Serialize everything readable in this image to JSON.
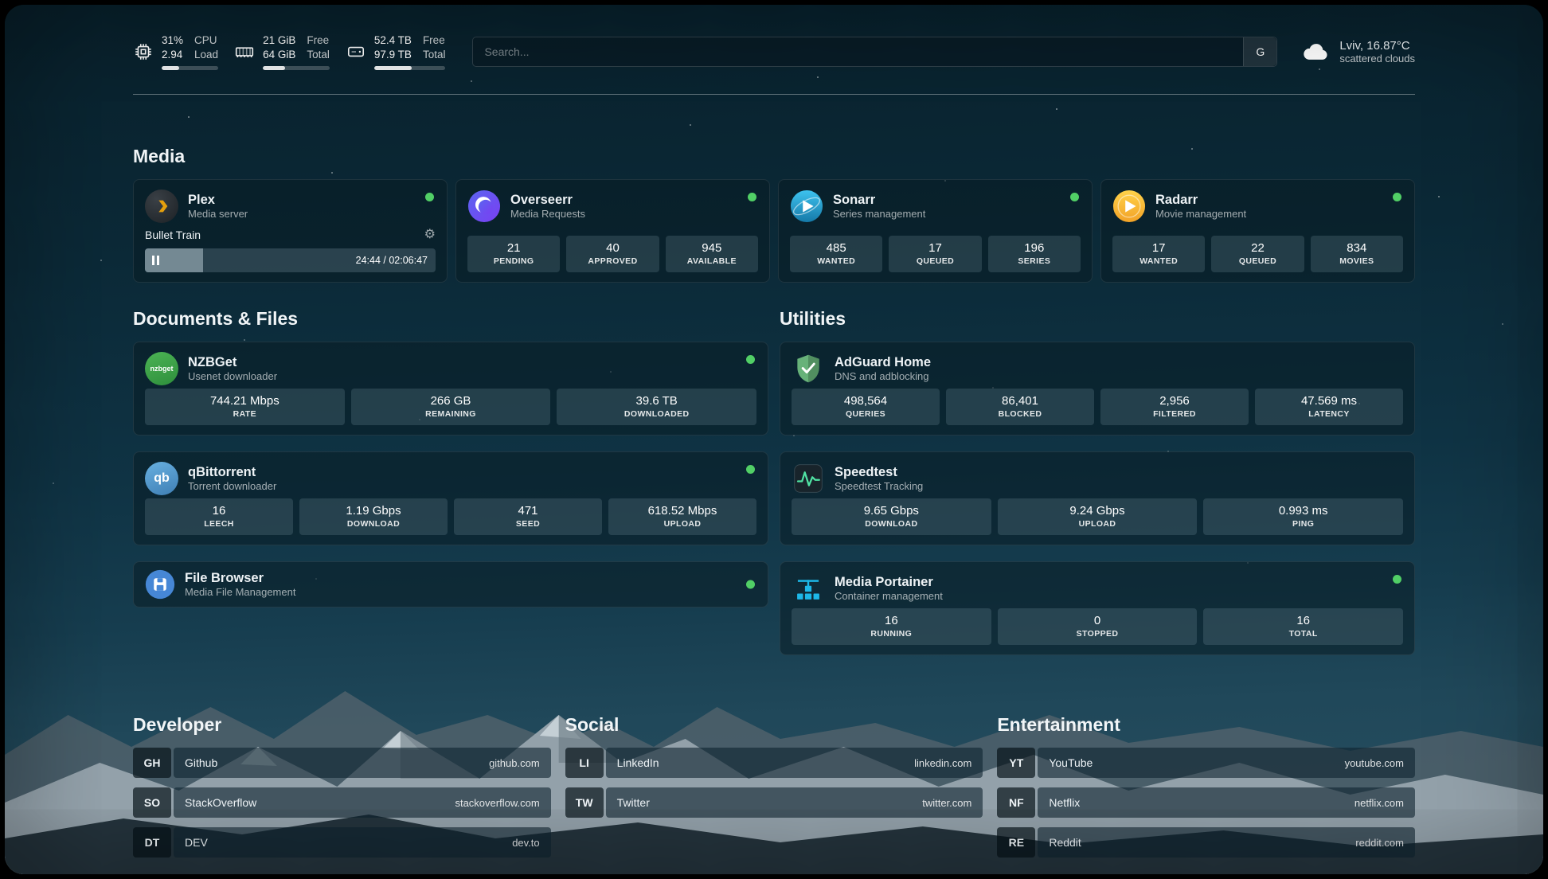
{
  "colors": {
    "status_online": "#51cf66",
    "plex_amber": "#e5a00d",
    "radarr_yellow": "#ffc230",
    "sonarr_blue": "#35b5e5",
    "overseerr_purple": "#5a50c8",
    "nzbget_green": "#3eb549",
    "qbittorrent_blue": "#4f9fd4",
    "filebrowser_blue": "#4687d6",
    "adguard_green": "#67b279",
    "speedtest_green": "#50e3a4",
    "portainer_blue": "#1db8e8"
  },
  "glyphs": {
    "gear": "⚙"
  },
  "topbar": {
    "cpu": {
      "values": [
        "31%",
        "2.94"
      ],
      "labels": [
        "CPU",
        "Load"
      ],
      "percent": 31
    },
    "ram": {
      "values": [
        "21 GiB",
        "64 GiB"
      ],
      "labels": [
        "Free",
        "Total"
      ],
      "percent": 33
    },
    "disk": {
      "values": [
        "52.4 TB",
        "97.9 TB"
      ],
      "labels": [
        "Free",
        "Total"
      ],
      "percent": 53
    },
    "search": {
      "placeholder": "Search...",
      "engine_label": "G"
    },
    "weather": {
      "location": "Lviv, 16.87°C",
      "condition": "scattered clouds"
    }
  },
  "media": {
    "title": "Media",
    "plex": {
      "name": "Plex",
      "subtitle": "Media server",
      "now_playing": "Bullet Train",
      "time": "24:44 / 02:06:47",
      "progress_percent": 20
    },
    "overseerr": {
      "name": "Overseerr",
      "subtitle": "Media Requests",
      "stats": [
        {
          "value": "21",
          "label": "PENDING"
        },
        {
          "value": "40",
          "label": "APPROVED"
        },
        {
          "value": "945",
          "label": "AVAILABLE"
        }
      ]
    },
    "sonarr": {
      "name": "Sonarr",
      "subtitle": "Series management",
      "stats": [
        {
          "value": "485",
          "label": "WANTED"
        },
        {
          "value": "17",
          "label": "QUEUED"
        },
        {
          "value": "196",
          "label": "SERIES"
        }
      ]
    },
    "radarr": {
      "name": "Radarr",
      "subtitle": "Movie management",
      "stats": [
        {
          "value": "17",
          "label": "WANTED"
        },
        {
          "value": "22",
          "label": "QUEUED"
        },
        {
          "value": "834",
          "label": "MOVIES"
        }
      ]
    }
  },
  "documents": {
    "title": "Documents & Files",
    "nzbget": {
      "name": "NZBGet",
      "subtitle": "Usenet downloader",
      "stats": [
        {
          "value": "744.21 Mbps",
          "label": "RATE"
        },
        {
          "value": "266 GB",
          "label": "REMAINING"
        },
        {
          "value": "39.6 TB",
          "label": "DOWNLOADED"
        }
      ]
    },
    "qbittorrent": {
      "name": "qBittorrent",
      "subtitle": "Torrent downloader",
      "stats": [
        {
          "value": "16",
          "label": "LEECH"
        },
        {
          "value": "1.19 Gbps",
          "label": "DOWNLOAD"
        },
        {
          "value": "471",
          "label": "SEED"
        },
        {
          "value": "618.52 Mbps",
          "label": "UPLOAD"
        }
      ]
    },
    "filebrowser": {
      "name": "File Browser",
      "subtitle": "Media File Management"
    }
  },
  "utilities": {
    "title": "Utilities",
    "adguard": {
      "name": "AdGuard Home",
      "subtitle": "DNS and adblocking",
      "stats": [
        {
          "value": "498,564",
          "label": "QUERIES"
        },
        {
          "value": "86,401",
          "label": "BLOCKED"
        },
        {
          "value": "2,956",
          "label": "FILTERED"
        },
        {
          "value": "47.569 ms",
          "label": "LATENCY"
        }
      ]
    },
    "speedtest": {
      "name": "Speedtest",
      "subtitle": "Speedtest Tracking",
      "stats": [
        {
          "value": "9.65 Gbps",
          "label": "DOWNLOAD"
        },
        {
          "value": "9.24 Gbps",
          "label": "UPLOAD"
        },
        {
          "value": "0.993 ms",
          "label": "PING"
        }
      ]
    },
    "portainer": {
      "name": "Media Portainer",
      "subtitle": "Container management",
      "stats": [
        {
          "value": "16",
          "label": "RUNNING"
        },
        {
          "value": "0",
          "label": "STOPPED"
        },
        {
          "value": "16",
          "label": "TOTAL"
        }
      ]
    }
  },
  "bookmarks": {
    "developer": {
      "title": "Developer",
      "items": [
        {
          "abbr": "GH",
          "name": "Github",
          "url": "github.com"
        },
        {
          "abbr": "SO",
          "name": "StackOverflow",
          "url": "stackoverflow.com"
        },
        {
          "abbr": "DT",
          "name": "DEV",
          "url": "dev.to"
        }
      ]
    },
    "social": {
      "title": "Social",
      "items": [
        {
          "abbr": "LI",
          "name": "LinkedIn",
          "url": "linkedin.com"
        },
        {
          "abbr": "TW",
          "name": "Twitter",
          "url": "twitter.com"
        }
      ]
    },
    "entertainment": {
      "title": "Entertainment",
      "items": [
        {
          "abbr": "YT",
          "name": "YouTube",
          "url": "youtube.com"
        },
        {
          "abbr": "NF",
          "name": "Netflix",
          "url": "netflix.com"
        },
        {
          "abbr": "RE",
          "name": "Reddit",
          "url": "reddit.com"
        }
      ]
    }
  }
}
